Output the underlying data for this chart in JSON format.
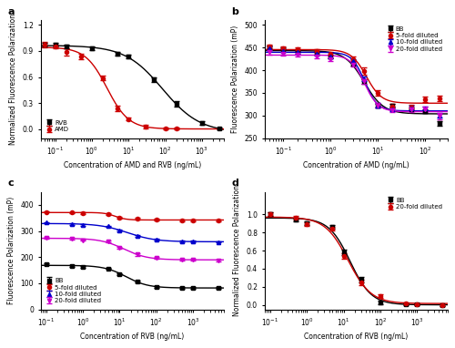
{
  "panel_a": {
    "xlabel": "Concentration of AMD and RVB (ng/mL)",
    "ylabel": "Normalized Fluorescence Polarization",
    "xlim": [
      0.04,
      4000
    ],
    "ylim": [
      -0.1,
      1.25
    ],
    "yticks": [
      0.0,
      0.3,
      0.6,
      0.9,
      1.2
    ],
    "RVB_x": [
      0.05,
      0.1,
      0.2,
      1.0,
      5.0,
      10.0,
      50.0,
      200.0,
      1000.0,
      3000.0
    ],
    "RVB_y": [
      0.97,
      0.97,
      0.95,
      0.93,
      0.87,
      0.84,
      0.57,
      0.29,
      0.07,
      0.01
    ],
    "RVB_yerr": [
      0.02,
      0.02,
      0.02,
      0.02,
      0.02,
      0.02,
      0.03,
      0.03,
      0.02,
      0.01
    ],
    "AMD_x": [
      0.05,
      0.1,
      0.2,
      0.5,
      2.0,
      5.0,
      10.0,
      30.0,
      100.0,
      200.0
    ],
    "AMD_y": [
      0.97,
      0.95,
      0.89,
      0.84,
      0.59,
      0.24,
      0.12,
      0.03,
      0.01,
      0.01
    ],
    "AMD_yerr": [
      0.03,
      0.02,
      0.04,
      0.03,
      0.03,
      0.03,
      0.02,
      0.02,
      0.01,
      0.01
    ],
    "RVB_color": "#000000",
    "AMD_color": "#cc0000",
    "legend_labels": [
      "RVB",
      "AMD"
    ]
  },
  "panel_b": {
    "xlabel": "Concentration of AMD (ng/mL)",
    "ylabel": "Fluorescence Polarization (mP)",
    "xlim": [
      0.04,
      300
    ],
    "ylim": [
      250,
      510
    ],
    "yticks": [
      250,
      300,
      350,
      400,
      450,
      500
    ],
    "BB_x": [
      0.05,
      0.1,
      0.2,
      0.5,
      1.0,
      3.0,
      5.0,
      10.0,
      20.0,
      50.0,
      100.0,
      200.0
    ],
    "BB_y": [
      450,
      447,
      443,
      438,
      430,
      415,
      375,
      322,
      322,
      314,
      310,
      283
    ],
    "BB_yerr": [
      4,
      3,
      3,
      3,
      4,
      5,
      5,
      4,
      3,
      3,
      4,
      5
    ],
    "fold5_x": [
      0.05,
      0.1,
      0.2,
      0.5,
      1.0,
      3.0,
      5.0,
      10.0,
      20.0,
      50.0,
      100.0,
      200.0
    ],
    "fold5_y": [
      452,
      449,
      447,
      443,
      437,
      425,
      398,
      350,
      320,
      318,
      335,
      337
    ],
    "fold5_yerr": [
      4,
      3,
      3,
      3,
      4,
      5,
      8,
      6,
      5,
      5,
      6,
      6
    ],
    "fold10_x": [
      0.05,
      0.1,
      0.2,
      0.5,
      1.0,
      3.0,
      5.0,
      10.0,
      20.0,
      50.0,
      100.0,
      200.0
    ],
    "fold10_y": [
      448,
      443,
      440,
      437,
      430,
      420,
      381,
      322,
      313,
      316,
      315,
      300
    ],
    "fold10_yerr": [
      4,
      3,
      3,
      3,
      4,
      4,
      5,
      5,
      4,
      5,
      5,
      5
    ],
    "fold20_x": [
      0.05,
      0.1,
      0.2,
      0.5,
      1.0,
      3.0,
      5.0,
      10.0,
      20.0,
      50.0,
      100.0,
      200.0
    ],
    "fold20_y": [
      440,
      437,
      434,
      430,
      425,
      413,
      375,
      322,
      312,
      313,
      313,
      299
    ],
    "fold20_yerr": [
      5,
      4,
      3,
      3,
      4,
      5,
      6,
      5,
      4,
      5,
      6,
      7
    ],
    "BB_color": "#000000",
    "fold5_color": "#cc0000",
    "fold10_color": "#0000cc",
    "fold20_color": "#cc00cc",
    "legend_labels": [
      "BB",
      "5-fold diluted",
      "10-fold diluted",
      "20-fold diluted"
    ]
  },
  "panel_c": {
    "xlabel": "Concentration of RVB (ng/mL)",
    "ylabel": "Fluorescence Polarization (mP)",
    "xlim": [
      0.07,
      7000
    ],
    "ylim": [
      0,
      450
    ],
    "yticks": [
      0,
      100,
      200,
      300,
      400
    ],
    "BB_x": [
      0.1,
      0.5,
      1.0,
      5.0,
      10.0,
      30.0,
      100.0,
      500.0,
      1000.0,
      5000.0
    ],
    "BB_y": [
      172,
      167,
      163,
      157,
      135,
      107,
      85,
      83,
      83,
      82
    ],
    "BB_yerr": [
      3,
      3,
      3,
      3,
      3,
      3,
      3,
      3,
      3,
      3
    ],
    "fold5_x": [
      0.1,
      0.5,
      1.0,
      5.0,
      10.0,
      30.0,
      100.0,
      500.0,
      1000.0,
      5000.0
    ],
    "fold5_y": [
      373,
      370,
      369,
      365,
      350,
      347,
      343,
      341,
      341,
      340
    ],
    "fold5_yerr": [
      3,
      3,
      3,
      3,
      3,
      3,
      3,
      3,
      3,
      3
    ],
    "fold10_x": [
      0.1,
      0.5,
      1.0,
      5.0,
      10.0,
      30.0,
      100.0,
      500.0,
      1000.0,
      5000.0
    ],
    "fold10_y": [
      332,
      326,
      322,
      318,
      302,
      281,
      268,
      260,
      260,
      258
    ],
    "fold10_yerr": [
      3,
      3,
      3,
      3,
      3,
      3,
      3,
      3,
      3,
      3
    ],
    "fold20_x": [
      0.1,
      0.5,
      1.0,
      5.0,
      10.0,
      30.0,
      100.0,
      500.0,
      1000.0,
      5000.0
    ],
    "fold20_y": [
      275,
      271,
      265,
      260,
      235,
      210,
      197,
      190,
      190,
      188
    ],
    "fold20_yerr": [
      3,
      3,
      3,
      3,
      4,
      4,
      4,
      3,
      3,
      3
    ],
    "BB_color": "#000000",
    "fold5_color": "#cc0000",
    "fold10_color": "#0000cc",
    "fold20_color": "#cc00cc",
    "legend_labels": [
      "BB",
      "5-fold diluted",
      "10-fold diluted",
      "20-fold diluted"
    ]
  },
  "panel_d": {
    "xlabel": "Concentration of RVB (ng/mL)",
    "ylabel": "Normalized Fluorescence Polarization",
    "xlim": [
      0.07,
      7000
    ],
    "ylim": [
      -0.05,
      1.25
    ],
    "yticks": [
      0.0,
      0.2,
      0.4,
      0.6,
      0.8,
      1.0
    ],
    "BB_x": [
      0.1,
      0.5,
      1.0,
      5.0,
      10.0,
      30.0,
      100.0,
      500.0,
      1000.0,
      5000.0
    ],
    "BB_y": [
      1.0,
      0.94,
      0.9,
      0.86,
      0.58,
      0.28,
      0.03,
      0.01,
      0.01,
      0.0
    ],
    "BB_yerr": [
      0.02,
      0.02,
      0.02,
      0.02,
      0.03,
      0.03,
      0.02,
      0.01,
      0.01,
      0.01
    ],
    "fold20_x": [
      0.1,
      0.5,
      1.0,
      5.0,
      10.0,
      30.0,
      100.0,
      500.0,
      1000.0,
      5000.0
    ],
    "fold20_y": [
      1.0,
      0.96,
      0.89,
      0.84,
      0.54,
      0.25,
      0.1,
      0.02,
      0.01,
      0.0
    ],
    "fold20_yerr": [
      0.02,
      0.02,
      0.02,
      0.02,
      0.03,
      0.03,
      0.02,
      0.01,
      0.01,
      0.01
    ],
    "BB_color": "#000000",
    "fold20_color": "#cc0000",
    "legend_labels": [
      "BB",
      "20-fold diluted"
    ]
  }
}
